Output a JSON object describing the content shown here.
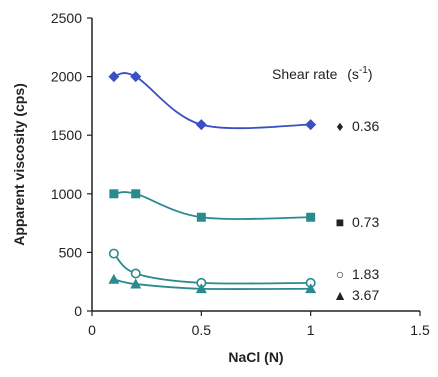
{
  "chart_data": {
    "type": "line",
    "xlabel": "NaCl (N)",
    "ylabel": "Apparent viscosity (cps)",
    "xlim": [
      0,
      1.5
    ],
    "ylim": [
      0,
      2500
    ],
    "xticks": [
      0,
      0.5,
      1,
      1.5
    ],
    "xtick_labels": [
      "0",
      "0.5",
      "1",
      "1.5"
    ],
    "yticks": [
      0,
      500,
      1000,
      1500,
      2000,
      2500
    ],
    "ytick_labels": [
      "0",
      "500",
      "1000",
      "1500",
      "2000",
      "2500"
    ],
    "grid": false,
    "legend": {
      "title": "Shear rate",
      "title_unit": "(s",
      "title_sup": "-1",
      "title_close": ")",
      "placement": "right, beside each series"
    },
    "series": [
      {
        "name": "0.36",
        "symbol": "♦",
        "marker": "diamond",
        "color": "#3a4fc4",
        "x": [
          0.1,
          0.2,
          0.5,
          1.0
        ],
        "y": [
          2000,
          2000,
          1590,
          1590
        ]
      },
      {
        "name": "0.73",
        "symbol": "■",
        "marker": "square",
        "color": "#2a8a8e",
        "x": [
          0.1,
          0.2,
          0.5,
          1.0
        ],
        "y": [
          1000,
          1000,
          800,
          800
        ]
      },
      {
        "name": "1.83",
        "symbol": "○",
        "marker": "circle-open",
        "color": "#2a8a8e",
        "x": [
          0.1,
          0.2,
          0.5,
          1.0
        ],
        "y": [
          490,
          320,
          240,
          240
        ]
      },
      {
        "name": "3.67",
        "symbol": "▲",
        "marker": "triangle",
        "color": "#2a8a8e",
        "x": [
          0.1,
          0.2,
          0.5,
          1.0
        ],
        "y": [
          270,
          230,
          190,
          190
        ]
      }
    ]
  }
}
